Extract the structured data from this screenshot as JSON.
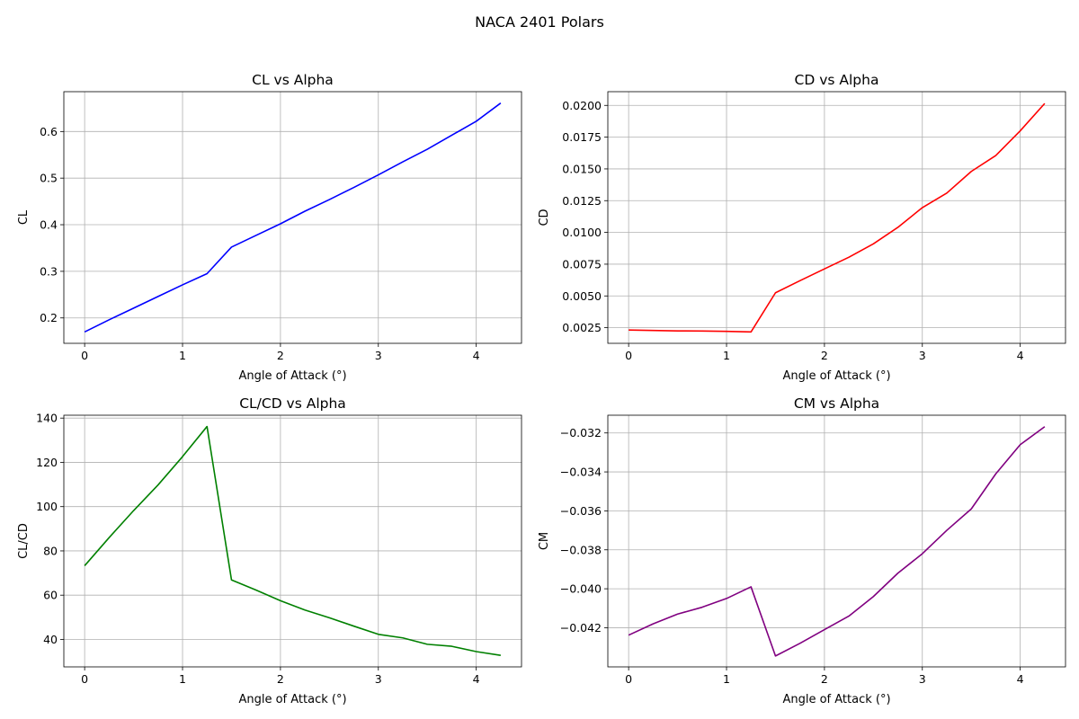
{
  "figure": {
    "title": "NACA 2401 Polars"
  },
  "chart_data": [
    {
      "type": "line",
      "title": "CL vs Alpha",
      "xlabel": "Angle of Attack (°)",
      "ylabel": "CL",
      "xlim": [
        -0.2125,
        4.4625
      ],
      "ylim": [
        0.1455,
        0.6855
      ],
      "xticks": [
        0,
        1,
        2,
        3,
        4
      ],
      "xtick_labels": [
        "0",
        "1",
        "2",
        "3",
        "4"
      ],
      "yticks": [
        0.2,
        0.3,
        0.4,
        0.5,
        0.6
      ],
      "ytick_labels": [
        "0.2",
        "0.3",
        "0.4",
        "0.5",
        "0.6"
      ],
      "grid": true,
      "color": "#0000ff",
      "x": [
        0,
        0.25,
        0.5,
        0.75,
        1.0,
        1.25,
        1.5,
        1.75,
        2.0,
        2.25,
        2.5,
        2.75,
        3.0,
        3.25,
        3.5,
        3.75,
        4.0,
        4.25
      ],
      "y": [
        0.17,
        0.196,
        0.221,
        0.246,
        0.271,
        0.295,
        0.352,
        0.377,
        0.402,
        0.429,
        0.454,
        0.48,
        0.507,
        0.535,
        0.562,
        0.592,
        0.622,
        0.661
      ]
    },
    {
      "type": "line",
      "title": "CD vs Alpha",
      "xlabel": "Angle of Attack (°)",
      "ylabel": "CD",
      "xlim": [
        -0.2125,
        4.4625
      ],
      "ylim": [
        0.00127,
        0.02108
      ],
      "xticks": [
        0,
        1,
        2,
        3,
        4
      ],
      "xtick_labels": [
        "0",
        "1",
        "2",
        "3",
        "4"
      ],
      "yticks": [
        0.0025,
        0.005,
        0.0075,
        0.01,
        0.0125,
        0.015,
        0.0175,
        0.02
      ],
      "ytick_labels": [
        "0.0025",
        "0.0050",
        "0.0075",
        "0.0100",
        "0.0125",
        "0.0150",
        "0.0175",
        "0.0200"
      ],
      "grid": true,
      "color": "#ff0000",
      "x": [
        0,
        0.25,
        0.5,
        0.75,
        1.0,
        1.25,
        1.5,
        1.75,
        2.0,
        2.25,
        2.5,
        2.75,
        3.0,
        3.25,
        3.5,
        3.75,
        4.0,
        4.25
      ],
      "y": [
        0.00232,
        0.00228,
        0.00225,
        0.00224,
        0.00221,
        0.00217,
        0.00525,
        0.0062,
        0.00713,
        0.00805,
        0.0091,
        0.0104,
        0.01195,
        0.0131,
        0.0148,
        0.01605,
        0.018,
        0.02015
      ]
    },
    {
      "type": "line",
      "title": "CL/CD vs Alpha",
      "xlabel": "Angle of Attack (°)",
      "ylabel": "CL/CD",
      "xlim": [
        -0.2125,
        4.4625
      ],
      "ylim": [
        27.6,
        141.3
      ],
      "xticks": [
        0,
        1,
        2,
        3,
        4
      ],
      "xtick_labels": [
        "0",
        "1",
        "2",
        "3",
        "4"
      ],
      "yticks": [
        40,
        60,
        80,
        100,
        120,
        140
      ],
      "ytick_labels": [
        "40",
        "60",
        "80",
        "100",
        "120",
        "140"
      ],
      "grid": true,
      "color": "#008000",
      "x": [
        0,
        0.25,
        0.5,
        0.75,
        1.0,
        1.25,
        1.5,
        1.75,
        2.0,
        2.25,
        2.5,
        2.75,
        3.0,
        3.25,
        3.5,
        3.75,
        4.0,
        4.25
      ],
      "y": [
        73.3,
        86.0,
        98.2,
        109.8,
        122.6,
        136.2,
        66.9,
        62.3,
        57.5,
        53.3,
        49.8,
        46.0,
        42.3,
        40.7,
        37.8,
        36.9,
        34.5,
        32.8
      ]
    },
    {
      "type": "line",
      "title": "CM vs Alpha",
      "xlabel": "Angle of Attack (°)",
      "ylabel": "CM",
      "xlim": [
        -0.2125,
        4.4625
      ],
      "ylim": [
        -0.04401,
        -0.03109
      ],
      "xticks": [
        0,
        1,
        2,
        3,
        4
      ],
      "xtick_labels": [
        "0",
        "1",
        "2",
        "3",
        "4"
      ],
      "yticks": [
        -0.042,
        -0.04,
        -0.038,
        -0.036,
        -0.034,
        -0.032
      ],
      "ytick_labels": [
        "−0.042",
        "−0.040",
        "−0.038",
        "−0.036",
        "−0.034",
        "−0.032"
      ],
      "grid": true,
      "color": "#800080",
      "x": [
        0,
        0.25,
        0.5,
        0.75,
        1.0,
        1.25,
        1.5,
        1.75,
        2.0,
        2.25,
        2.5,
        2.75,
        3.0,
        3.25,
        3.5,
        3.75,
        4.0,
        4.25
      ],
      "y": [
        -0.04238,
        -0.0418,
        -0.0413,
        -0.04095,
        -0.0405,
        -0.0399,
        -0.04345,
        -0.0428,
        -0.0421,
        -0.0414,
        -0.0404,
        -0.0392,
        -0.0382,
        -0.037,
        -0.0359,
        -0.0341,
        -0.0326,
        -0.03168
      ]
    }
  ]
}
